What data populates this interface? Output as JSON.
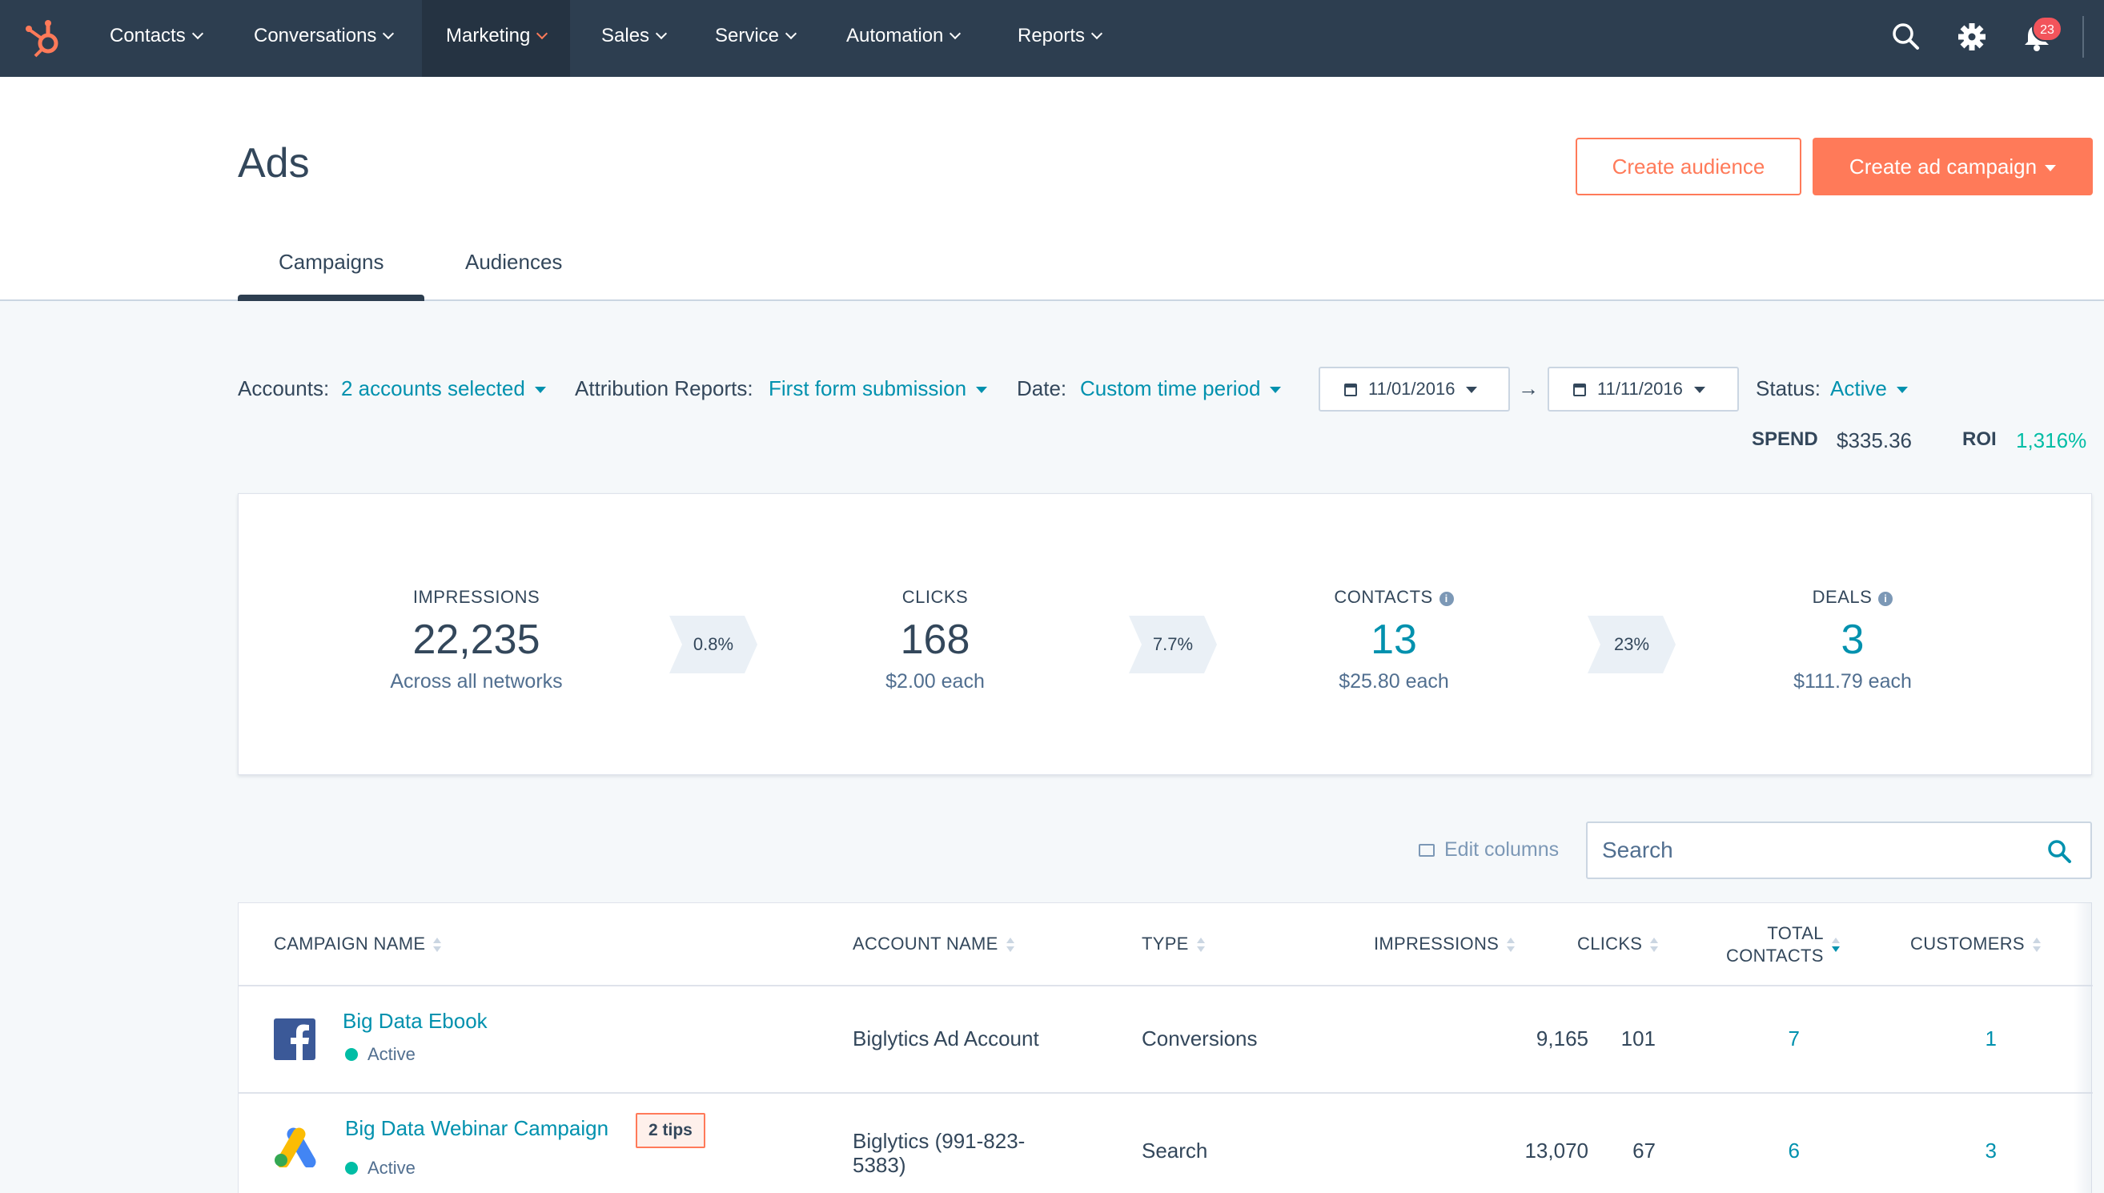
{
  "nav": {
    "items": [
      {
        "label": "Contacts"
      },
      {
        "label": "Conversations"
      },
      {
        "label": "Marketing"
      },
      {
        "label": "Sales"
      },
      {
        "label": "Service"
      },
      {
        "label": "Automation"
      },
      {
        "label": "Reports"
      }
    ],
    "active": "Marketing",
    "notification_count": "23",
    "icons": [
      "hubspot-logo",
      "search-icon",
      "gear-icon",
      "bell-icon"
    ]
  },
  "header": {
    "title": "Ads",
    "create_audience_label": "Create audience",
    "create_campaign_label": "Create ad campaign",
    "tabs": [
      {
        "label": "Campaigns"
      },
      {
        "label": "Audiences"
      }
    ],
    "active_tab": "Campaigns"
  },
  "filters": {
    "accounts_label": "Accounts:",
    "accounts_value": "2 accounts selected",
    "attribution_label": "Attribution Reports:",
    "attribution_value": "First form submission",
    "date_label": "Date:",
    "date_value": "Custom time period",
    "start_date": "11/01/2016",
    "arrow": "→",
    "end_date": "11/11/2016",
    "status_label": "Status:",
    "status_value": "Active"
  },
  "totals": {
    "spend_label": "SPEND",
    "spend_value": "$335.36",
    "roi_label": "ROI",
    "roi_value": "1,316%"
  },
  "summary": {
    "metrics": [
      {
        "label": "IMPRESSIONS",
        "value": "22,235",
        "sub": "Across all networks"
      },
      {
        "label": "CLICKS",
        "value": "168",
        "sub": "$2.00 each"
      },
      {
        "label": "CONTACTS",
        "value": "13",
        "sub": "$25.80 each"
      },
      {
        "label": "DEALS",
        "value": "3",
        "sub": "$111.79 each"
      }
    ],
    "rates": [
      "0.8%",
      "7.7%",
      "23%"
    ]
  },
  "toolbar": {
    "edit_columns_label": "Edit columns",
    "search_placeholder": "Search"
  },
  "table": {
    "columns": {
      "campaign_name": "CAMPAIGN NAME",
      "account_name": "ACCOUNT NAME",
      "type": "TYPE",
      "impressions": "IMPRESSIONS",
      "clicks": "CLICKS",
      "total_contacts_1": "TOTAL",
      "total_contacts_2": "CONTACTS",
      "customers": "CUSTOMERS"
    },
    "rows": [
      {
        "network_icon": "facebook-icon",
        "name": "Big Data Ebook",
        "status": "Active",
        "tips": "",
        "account_1": "Biglytics Ad Account",
        "account_2": "",
        "type": "Conversions",
        "impressions": "9,165",
        "clicks": "101",
        "contacts": "7",
        "customers": "1"
      },
      {
        "network_icon": "google-ads-icon",
        "name": "Big Data Webinar Campaign",
        "status": "Active",
        "tips": "2 tips",
        "account_1": "Biglytics (991-823-",
        "account_2": "5383)",
        "type": "Search",
        "impressions": "13,070",
        "clicks": "67",
        "contacts": "6",
        "customers": "3"
      }
    ]
  },
  "colors": {
    "nav_bg": "#2d3e50",
    "accent": "#ff7a59",
    "link": "#0091ae",
    "roi": "#00a4bd",
    "active_status": "#00bda5"
  }
}
